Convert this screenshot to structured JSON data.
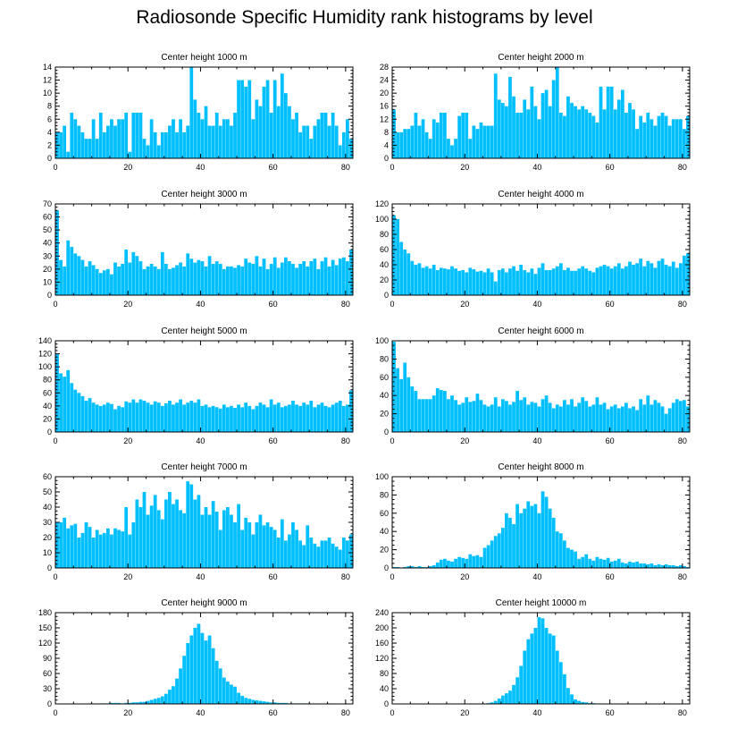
{
  "title": "Radiosonde Specific Humidity rank histograms by level",
  "bar_color": "#00bfff",
  "chart_data": [
    {
      "type": "bar",
      "title": "Center height 1000 m",
      "xlim": [
        0,
        82
      ],
      "xticks": [
        0,
        20,
        40,
        60,
        80
      ],
      "ylim": [
        0,
        14
      ],
      "yticks": [
        0,
        2,
        4,
        6,
        8,
        10,
        12,
        14
      ],
      "values": [
        4,
        4,
        5,
        1,
        7,
        6,
        5,
        4,
        3,
        3,
        6,
        3,
        7,
        4,
        5,
        6,
        5,
        6,
        6,
        7,
        1,
        7,
        7,
        7,
        3,
        2,
        6,
        4,
        2,
        4,
        4,
        5,
        6,
        4,
        6,
        4,
        5,
        14,
        9,
        7,
        6,
        8,
        5,
        5,
        7,
        5,
        6,
        6,
        5,
        7,
        12,
        12,
        11,
        12,
        6,
        9,
        8,
        11,
        12,
        7,
        12,
        8,
        13,
        10,
        8,
        6,
        7,
        4,
        5,
        5,
        3,
        5,
        6,
        7,
        7,
        5,
        7,
        5,
        2,
        4,
        6,
        3
      ]
    },
    {
      "type": "bar",
      "title": "Center height 2000 m",
      "xlim": [
        0,
        82
      ],
      "xticks": [
        0,
        20,
        40,
        60,
        80
      ],
      "ylim": [
        0,
        28
      ],
      "yticks": [
        0,
        4,
        8,
        12,
        16,
        20,
        24,
        28
      ],
      "values": [
        15,
        8,
        8,
        9,
        9,
        10,
        14,
        10,
        12,
        8,
        6,
        12,
        11,
        14,
        14,
        6,
        4,
        6,
        13,
        14,
        14,
        6,
        10,
        9,
        11,
        10,
        10,
        10,
        26,
        18,
        17,
        16,
        25,
        19,
        14,
        14,
        18,
        15,
        22,
        16,
        12,
        20,
        21,
        16,
        24,
        28,
        14,
        13,
        19,
        17,
        16,
        15,
        16,
        15,
        14,
        13,
        11,
        22,
        15,
        22,
        22,
        15,
        18,
        21,
        14,
        17,
        15,
        9,
        13,
        11,
        14,
        12,
        10,
        13,
        14,
        13,
        10,
        12,
        12,
        12,
        9,
        13
      ]
    },
    {
      "type": "bar",
      "title": "Center height 3000 m",
      "xlim": [
        0,
        82
      ],
      "xticks": [
        0,
        20,
        40,
        60,
        80
      ],
      "ylim": [
        0,
        70
      ],
      "yticks": [
        0,
        10,
        20,
        30,
        40,
        50,
        60,
        70
      ],
      "values": [
        65,
        27,
        22,
        42,
        37,
        32,
        30,
        27,
        22,
        26,
        23,
        20,
        17,
        19,
        20,
        16,
        25,
        22,
        24,
        35,
        25,
        33,
        30,
        26,
        20,
        22,
        24,
        22,
        20,
        33,
        24,
        20,
        21,
        23,
        25,
        22,
        32,
        28,
        25,
        27,
        26,
        22,
        30,
        24,
        26,
        24,
        20,
        22,
        22,
        21,
        23,
        22,
        28,
        25,
        24,
        30,
        22,
        28,
        20,
        24,
        29,
        21,
        25,
        29,
        26,
        24,
        21,
        24,
        26,
        22,
        26,
        28,
        20,
        26,
        29,
        22,
        27,
        23,
        28,
        29,
        26,
        35
      ]
    },
    {
      "type": "bar",
      "title": "Center height 4000 m",
      "xlim": [
        0,
        82
      ],
      "xticks": [
        0,
        20,
        40,
        60,
        80
      ],
      "ylim": [
        0,
        120
      ],
      "yticks": [
        0,
        20,
        40,
        60,
        80,
        100,
        120
      ],
      "values": [
        105,
        100,
        70,
        60,
        55,
        45,
        40,
        42,
        36,
        38,
        35,
        40,
        33,
        36,
        35,
        34,
        38,
        35,
        32,
        33,
        30,
        36,
        34,
        31,
        32,
        30,
        35,
        30,
        18,
        33,
        35,
        30,
        35,
        38,
        32,
        40,
        33,
        30,
        35,
        28,
        36,
        42,
        33,
        33,
        35,
        38,
        42,
        33,
        36,
        32,
        32,
        35,
        38,
        35,
        32,
        30,
        36,
        38,
        40,
        38,
        35,
        38,
        42,
        35,
        38,
        44,
        40,
        42,
        48,
        38,
        45,
        42,
        36,
        45,
        48,
        40,
        38,
        44,
        36,
        42,
        52,
        55
      ]
    },
    {
      "type": "bar",
      "title": "Center height 5000 m",
      "xlim": [
        0,
        82
      ],
      "xticks": [
        0,
        20,
        40,
        60,
        80
      ],
      "ylim": [
        0,
        140
      ],
      "yticks": [
        0,
        20,
        40,
        60,
        80,
        100,
        120,
        140
      ],
      "values": [
        120,
        90,
        85,
        95,
        75,
        65,
        60,
        55,
        48,
        52,
        45,
        42,
        40,
        42,
        45,
        43,
        35,
        40,
        38,
        47,
        45,
        50,
        45,
        50,
        48,
        45,
        42,
        47,
        45,
        40,
        44,
        48,
        42,
        45,
        50,
        42,
        45,
        48,
        45,
        50,
        40,
        42,
        38,
        40,
        38,
        36,
        42,
        38,
        40,
        37,
        42,
        38,
        45,
        40,
        35,
        40,
        45,
        42,
        38,
        50,
        42,
        45,
        38,
        40,
        42,
        48,
        42,
        40,
        45,
        42,
        48,
        38,
        42,
        45,
        40,
        38,
        42,
        45,
        48,
        40,
        42,
        64
      ]
    },
    {
      "type": "bar",
      "title": "Center height 6000 m",
      "xlim": [
        0,
        82
      ],
      "xticks": [
        0,
        20,
        40,
        60,
        80
      ],
      "ylim": [
        0,
        100
      ],
      "yticks": [
        0,
        20,
        40,
        60,
        80,
        100
      ],
      "values": [
        99,
        70,
        58,
        76,
        60,
        50,
        45,
        36,
        36,
        36,
        36,
        40,
        48,
        46,
        45,
        36,
        40,
        35,
        30,
        32,
        38,
        33,
        34,
        42,
        35,
        30,
        28,
        30,
        38,
        28,
        36,
        34,
        30,
        33,
        45,
        35,
        38,
        30,
        33,
        32,
        28,
        36,
        40,
        32,
        26,
        30,
        28,
        35,
        30,
        36,
        28,
        32,
        38,
        34,
        28,
        30,
        38,
        30,
        32,
        25,
        28,
        30,
        26,
        28,
        32,
        26,
        28,
        24,
        36,
        30,
        40,
        30,
        35,
        32,
        28,
        20,
        26,
        32,
        36,
        34,
        35,
        28
      ]
    },
    {
      "type": "bar",
      "title": "Center height 7000 m",
      "xlim": [
        0,
        82
      ],
      "xticks": [
        0,
        20,
        40,
        60,
        80
      ],
      "ylim": [
        0,
        60
      ],
      "yticks": [
        0,
        10,
        20,
        30,
        40,
        50,
        60
      ],
      "values": [
        30,
        30,
        33,
        26,
        28,
        29,
        20,
        23,
        30,
        27,
        20,
        25,
        22,
        23,
        26,
        22,
        26,
        25,
        24,
        40,
        22,
        30,
        45,
        40,
        50,
        35,
        41,
        48,
        38,
        32,
        45,
        50,
        42,
        45,
        38,
        36,
        57,
        55,
        45,
        48,
        35,
        40,
        35,
        44,
        37,
        25,
        38,
        40,
        35,
        30,
        42,
        25,
        33,
        30,
        22,
        30,
        35,
        28,
        30,
        27,
        25,
        20,
        32,
        18,
        22,
        30,
        25,
        18,
        15,
        28,
        20,
        16,
        14,
        18,
        18,
        20,
        16,
        14,
        12,
        20,
        18,
        22
      ]
    },
    {
      "type": "bar",
      "title": "Center height 8000 m",
      "xlim": [
        0,
        82
      ],
      "xticks": [
        0,
        20,
        40,
        60,
        80
      ],
      "ylim": [
        0,
        100
      ],
      "yticks": [
        0,
        20,
        40,
        60,
        80,
        100
      ],
      "values": [
        1,
        1,
        0,
        1,
        2,
        2,
        1,
        2,
        1,
        1,
        2,
        3,
        6,
        9,
        10,
        8,
        7,
        10,
        12,
        11,
        10,
        15,
        13,
        14,
        12,
        22,
        25,
        30,
        35,
        38,
        44,
        60,
        55,
        48,
        70,
        60,
        65,
        73,
        68,
        70,
        60,
        84,
        78,
        65,
        55,
        40,
        38,
        30,
        22,
        20,
        18,
        10,
        12,
        15,
        10,
        8,
        12,
        10,
        9,
        11,
        7,
        8,
        10,
        6,
        5,
        7,
        6,
        7,
        5,
        5,
        4,
        5,
        3,
        4,
        3,
        4,
        3,
        3,
        2,
        3,
        2,
        1
      ]
    },
    {
      "type": "bar",
      "title": "Center height 9000 m",
      "xlim": [
        0,
        82
      ],
      "xticks": [
        0,
        20,
        40,
        60,
        80
      ],
      "ylim": [
        0,
        180
      ],
      "yticks": [
        0,
        30,
        60,
        90,
        120,
        150,
        180
      ],
      "values": [
        0,
        0,
        0,
        0,
        0,
        0,
        0,
        0,
        0,
        1,
        0,
        1,
        1,
        1,
        1,
        2,
        2,
        2,
        1,
        2,
        2,
        3,
        3,
        4,
        4,
        6,
        8,
        10,
        12,
        15,
        20,
        28,
        35,
        50,
        70,
        95,
        120,
        135,
        150,
        158,
        140,
        125,
        135,
        110,
        85,
        70,
        52,
        44,
        38,
        34,
        22,
        16,
        12,
        10,
        8,
        7,
        6,
        5,
        4,
        3,
        3,
        2,
        2,
        2,
        1,
        1,
        1,
        1,
        1,
        1,
        0,
        1,
        0,
        0,
        0,
        1,
        0,
        0,
        0,
        0,
        0,
        0
      ]
    },
    {
      "type": "bar",
      "title": "Center height 10000 m",
      "xlim": [
        0,
        82
      ],
      "xticks": [
        0,
        20,
        40,
        60,
        80
      ],
      "ylim": [
        0,
        240
      ],
      "yticks": [
        0,
        40,
        80,
        120,
        160,
        200,
        240
      ],
      "values": [
        0,
        0,
        0,
        0,
        0,
        0,
        0,
        0,
        0,
        0,
        0,
        0,
        0,
        0,
        0,
        0,
        0,
        0,
        0,
        0,
        0,
        0,
        0,
        0,
        0,
        1,
        2,
        4,
        8,
        14,
        22,
        28,
        35,
        50,
        70,
        100,
        140,
        170,
        185,
        200,
        228,
        225,
        200,
        185,
        180,
        140,
        110,
        78,
        42,
        25,
        12,
        8,
        5,
        4,
        2,
        2,
        1,
        1,
        0,
        0,
        0,
        0,
        0,
        0,
        0,
        0,
        0,
        0,
        0,
        0,
        0,
        0,
        0,
        0,
        0,
        0,
        0,
        0,
        0,
        0,
        0,
        0
      ]
    }
  ]
}
